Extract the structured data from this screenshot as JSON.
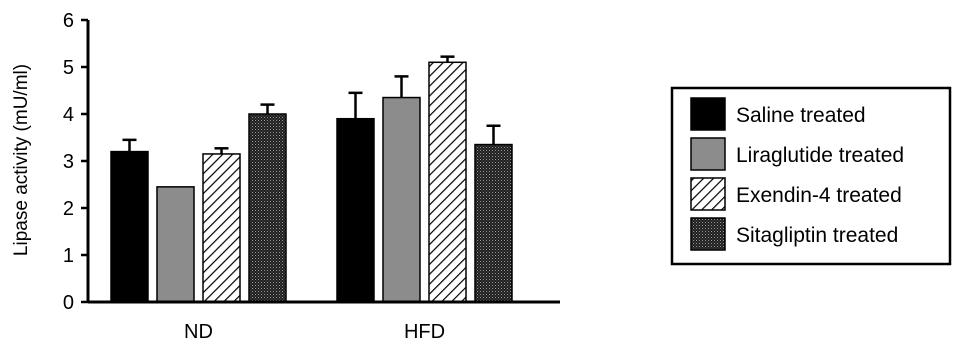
{
  "chart_data": {
    "type": "bar",
    "title": "",
    "xlabel": "",
    "ylabel": "Lipase activity (mU/ml)",
    "ylim": [
      0,
      6
    ],
    "yticks": [
      "0",
      "1",
      "2",
      "3",
      "4",
      "5",
      "6"
    ],
    "categories": [
      "ND",
      "HFD"
    ],
    "grid": false,
    "legend_position": "right",
    "series": [
      {
        "name": "Saline treated",
        "values": [
          3.2,
          3.9
        ],
        "errors": [
          0.25,
          0.55
        ],
        "fill": "#000000",
        "pattern": "solid"
      },
      {
        "name": "Liraglutide treated",
        "values": [
          2.45,
          4.35
        ],
        "errors": [
          0,
          0.45
        ],
        "fill": "#8c8c8c",
        "pattern": "solid"
      },
      {
        "name": "Exendin-4 treated",
        "values": [
          3.15,
          5.1
        ],
        "errors": [
          0.12,
          0.12
        ],
        "fill": "#ffffff",
        "pattern": "hatch"
      },
      {
        "name": "Sitagliptin treated",
        "values": [
          4.0,
          3.35
        ],
        "errors": [
          0.2,
          0.4
        ],
        "fill": "#2a2a2a",
        "pattern": "crosshatch"
      }
    ]
  }
}
